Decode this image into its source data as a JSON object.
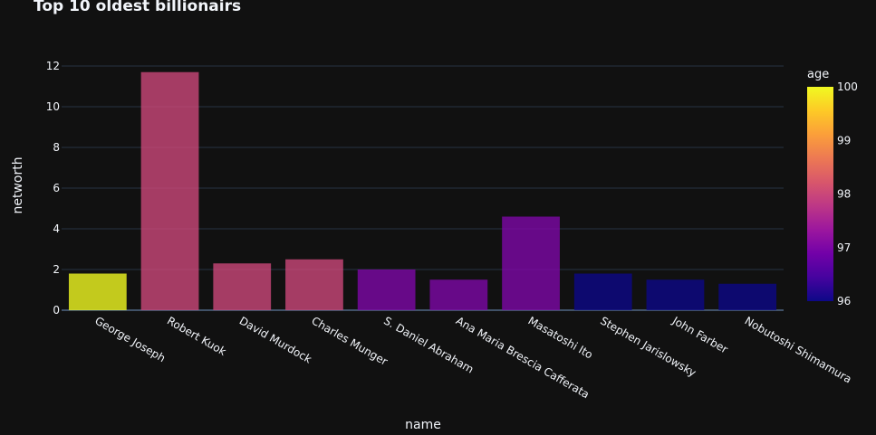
{
  "chart_data": {
    "type": "bar",
    "title": "Top 10 oldest billionairs",
    "xlabel": "name",
    "ylabel": "networth",
    "ylim": [
      0,
      12.4
    ],
    "yticks": [
      0,
      2,
      4,
      6,
      8,
      10,
      12
    ],
    "categories": [
      "George Joseph",
      "Robert Kuok",
      "David Murdock",
      "Charles Munger",
      "S. Daniel Abraham",
      "Ana Maria Brescia Cafferata",
      "Masatoshi Ito",
      "Stephen Jarislowsky",
      "John Farber",
      "Nobutoshi Shimamura"
    ],
    "values": [
      1.8,
      11.7,
      2.3,
      2.5,
      2.0,
      1.5,
      4.6,
      1.8,
      1.5,
      1.3
    ],
    "color_values": [
      100,
      98,
      98,
      98,
      97,
      97,
      97,
      96,
      96,
      96
    ],
    "colorbar": {
      "title": "age",
      "range": [
        96,
        100
      ],
      "ticks": [
        96,
        97,
        98,
        99,
        100
      ],
      "colorscale": [
        "#0d0887",
        "#46039f",
        "#7201a8",
        "#9c179e",
        "#bd3786",
        "#d8576b",
        "#ed7953",
        "#fb9f3a",
        "#fdca26",
        "#f0f921"
      ]
    },
    "grid": true,
    "legend": "colorbar-right",
    "colors": {
      "background": "#111111",
      "grid": "#283442",
      "text": "#f2f5fa"
    }
  }
}
